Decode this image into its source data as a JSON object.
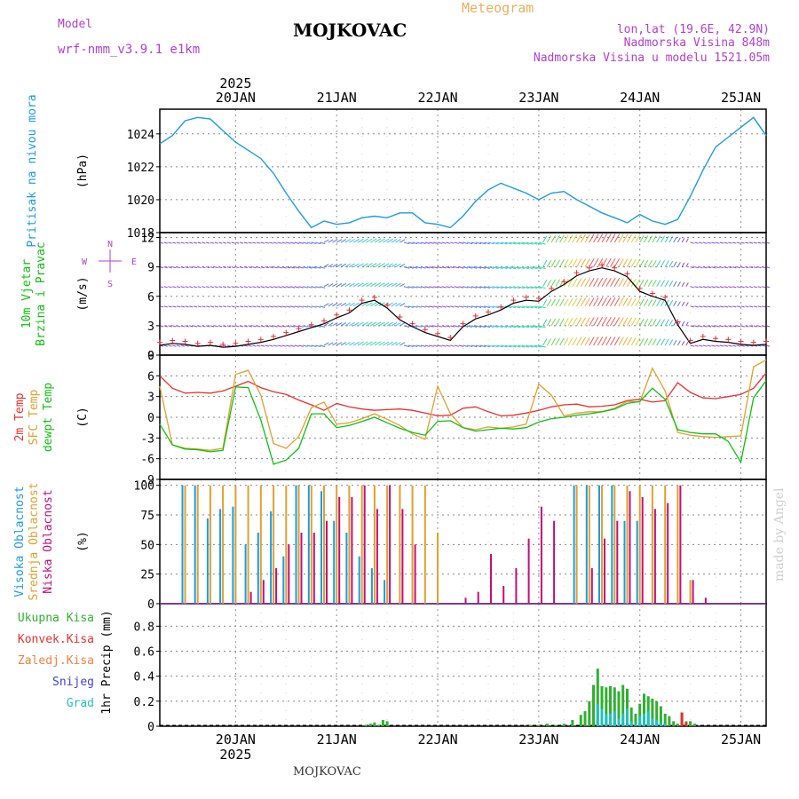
{
  "header": {
    "title": "MOJKOVAC",
    "meteogram_label": "Meteogram",
    "model_label": "Model",
    "model_value": "wrf-nmm_v3.9.1  e1km",
    "lonlat": "lon,lat (19.6E, 42.9N)",
    "altitude": "Nadmorska Visina 848m",
    "model_altitude": "Nadmorska Visina u modelu 1521.05m"
  },
  "footer": {
    "station": "MOJKOVAC",
    "credit": "made by Angel"
  },
  "colors": {
    "pressure": "#1e9be0",
    "temp2m": "#e83030",
    "sfc_temp": "#e0a030",
    "dewpt": "#10c010",
    "cloud_high": "#1e9be0",
    "cloud_mid": "#e0a030",
    "cloud_low": "#c0107a",
    "precip_total": "#30b030",
    "precip_conv": "#e83030",
    "precip_frz": "#f08040",
    "precip_snow": "#4040e0",
    "precip_graupel": "#20c0c0",
    "grid": "#888888"
  },
  "time_axis": {
    "year": "2025",
    "days": [
      "20JAN",
      "21JAN",
      "22JAN",
      "23JAN",
      "24JAN",
      "25JAN"
    ],
    "start_hours": -18,
    "end_hours": 126
  },
  "chart_data": [
    {
      "type": "line",
      "panel": "pressure",
      "ylabel_lines": [
        "Pritisak na nivou mora"
      ],
      "unit": "(hPa)",
      "ylim": [
        1018,
        1025.5
      ],
      "yticks": [
        "1018",
        "1020",
        "1022",
        "1024"
      ],
      "series": [
        {
          "x": [
            -18,
            -15,
            -12,
            -9,
            -6,
            -3,
            0,
            3,
            6,
            9,
            12,
            15,
            18,
            21,
            24,
            27,
            30,
            33,
            36,
            39,
            42,
            45,
            48,
            51,
            54,
            57,
            60,
            63,
            66,
            69,
            72,
            75,
            78,
            81,
            84,
            87,
            90,
            93,
            96,
            99,
            102,
            105,
            108,
            111,
            114,
            117,
            120,
            123,
            126
          ],
          "y": [
            1023.4,
            1023.9,
            1024.8,
            1025.0,
            1024.9,
            1024.2,
            1023.5,
            1023.0,
            1022.5,
            1021.6,
            1020.4,
            1019.3,
            1018.3,
            1018.7,
            1018.5,
            1018.6,
            1018.9,
            1019.0,
            1018.9,
            1019.2,
            1019.2,
            1018.6,
            1018.5,
            1018.3,
            1019.0,
            1019.9,
            1020.6,
            1021.0,
            1020.7,
            1020.4,
            1020.0,
            1020.4,
            1020.5,
            1020.0,
            1019.6,
            1019.2,
            1018.9,
            1018.6,
            1019.1,
            1018.7,
            1018.5,
            1018.8,
            1020.2,
            1021.8,
            1023.2,
            1023.8,
            1024.4,
            1025.0,
            1023.9
          ]
        }
      ]
    },
    {
      "type": "line",
      "panel": "wind",
      "ylabel_lines": [
        "10m Vjetar",
        "Brzina i Pravac"
      ],
      "unit": "(m/s)",
      "compass": [
        "N",
        "E",
        "S",
        "W"
      ],
      "ylim": [
        0,
        12.5
      ],
      "yticks": [
        "0",
        "3",
        "6",
        "9",
        "12"
      ],
      "series": [
        {
          "name": "speed",
          "x": [
            -18,
            -15,
            -12,
            -9,
            -6,
            -3,
            0,
            3,
            6,
            9,
            12,
            15,
            18,
            21,
            24,
            27,
            30,
            33,
            36,
            39,
            42,
            45,
            48,
            51,
            54,
            57,
            60,
            63,
            66,
            69,
            72,
            75,
            78,
            81,
            84,
            87,
            90,
            93,
            96,
            99,
            102,
            105,
            108,
            111,
            114,
            117,
            120,
            123,
            126
          ],
          "y": [
            1.0,
            1.2,
            1.1,
            0.9,
            1.0,
            0.8,
            0.9,
            1.1,
            1.3,
            1.6,
            2.0,
            2.4,
            2.8,
            3.2,
            3.8,
            4.3,
            5.3,
            5.6,
            4.8,
            3.6,
            2.9,
            2.3,
            1.9,
            1.5,
            2.9,
            3.7,
            4.1,
            4.6,
            5.3,
            5.6,
            5.5,
            6.5,
            7.2,
            8.1,
            8.6,
            8.9,
            8.6,
            8.0,
            6.5,
            6.0,
            5.6,
            3.1,
            1.2,
            1.6,
            1.4,
            1.3,
            1.1,
            1.0,
            1.1
          ]
        }
      ]
    },
    {
      "type": "line",
      "panel": "temperature",
      "ylabel_lines": [
        "2m Temp",
        "SFC Temp",
        "dewpt Temp"
      ],
      "unit": "(C)",
      "ylim": [
        -9,
        9
      ],
      "yticks": [
        "-9",
        "-6",
        "-3",
        "0",
        "3",
        "6",
        "9"
      ],
      "x": [
        -18,
        -15,
        -12,
        -9,
        -6,
        -3,
        0,
        3,
        6,
        9,
        12,
        15,
        18,
        21,
        24,
        27,
        30,
        33,
        36,
        39,
        42,
        45,
        48,
        51,
        54,
        57,
        60,
        63,
        66,
        69,
        72,
        75,
        78,
        81,
        84,
        87,
        90,
        93,
        96,
        99,
        102,
        105,
        108,
        111,
        114,
        117,
        120,
        123,
        126
      ],
      "series": [
        {
          "name": "2m Temp",
          "y": [
            6.0,
            4.2,
            3.5,
            3.6,
            3.5,
            3.8,
            4.5,
            5.2,
            4.3,
            3.7,
            3.3,
            2.5,
            1.8,
            1.0,
            2.0,
            1.5,
            1.2,
            1.0,
            1.1,
            1.2,
            1.0,
            0.6,
            0.2,
            0.3,
            1.3,
            1.5,
            0.8,
            0.2,
            0.3,
            0.6,
            1.0,
            1.5,
            1.8,
            1.9,
            1.5,
            1.6,
            1.8,
            2.4,
            2.6,
            2.2,
            2.4,
            5.0,
            3.6,
            2.8,
            2.7,
            3.0,
            3.3,
            4.2,
            6.4
          ]
        },
        {
          "name": "SFC Temp",
          "y": [
            4.5,
            -4.0,
            -4.5,
            -4.6,
            -4.8,
            -4.5,
            6.2,
            6.8,
            3.2,
            -3.8,
            -4.5,
            -2.8,
            1.4,
            2.2,
            -1.0,
            -0.8,
            -0.2,
            0.5,
            -0.3,
            -1.2,
            -2.4,
            -3.2,
            4.5,
            0.5,
            -1.5,
            -1.8,
            -1.4,
            -1.6,
            -1.4,
            -1.0,
            4.8,
            3.2,
            0.2,
            0.6,
            0.8,
            0.8,
            1.3,
            2.3,
            2.2,
            7.1,
            3.8,
            -2.2,
            -2.6,
            -2.8,
            -2.9,
            -2.8,
            -2.7,
            7.3,
            8.3
          ]
        },
        {
          "name": "dewpt Temp",
          "y": [
            -1.0,
            -4.0,
            -4.6,
            -4.7,
            -5.0,
            -4.8,
            4.4,
            4.3,
            -0.4,
            -6.8,
            -6.2,
            -4.5,
            0.5,
            0.5,
            -1.5,
            -1.2,
            -0.6,
            0.0,
            -0.8,
            -1.6,
            -2.2,
            -2.6,
            -0.6,
            -0.5,
            -1.5,
            -2.0,
            -1.8,
            -1.6,
            -1.7,
            -1.5,
            -0.7,
            -0.2,
            0.0,
            0.3,
            0.5,
            0.8,
            1.2,
            2.0,
            2.3,
            4.2,
            2.6,
            -1.8,
            -2.2,
            -2.4,
            -2.4,
            -3.5,
            -6.5,
            2.8,
            5.3
          ]
        }
      ]
    },
    {
      "type": "bar",
      "panel": "clouds",
      "ylabel_lines": [
        "Visoka Oblacnost",
        "Srednja Oblacnost",
        "Niska Oblacnost"
      ],
      "unit": "(%)",
      "ylim": [
        0,
        105
      ],
      "yticks": [
        "0",
        "25",
        "50",
        "75",
        "100"
      ],
      "x": [
        -18,
        -15,
        -12,
        -9,
        -6,
        -3,
        0,
        3,
        6,
        9,
        12,
        15,
        18,
        21,
        24,
        27,
        30,
        33,
        36,
        39,
        42,
        45,
        48,
        51,
        54,
        57,
        60,
        63,
        66,
        69,
        72,
        75,
        78,
        81,
        84,
        87,
        90,
        93,
        96,
        99,
        102,
        105,
        108,
        111,
        114,
        117,
        120,
        123,
        126
      ],
      "series": [
        {
          "name": "Visoka Oblacnost",
          "values": [
            0,
            0,
            100,
            100,
            72,
            80,
            82,
            50,
            60,
            78,
            40,
            100,
            100,
            95,
            70,
            60,
            40,
            30,
            20,
            0,
            0,
            0,
            0,
            0,
            0,
            0,
            0,
            0,
            0,
            0,
            0,
            0,
            0,
            100,
            100,
            100,
            100,
            70,
            70,
            0,
            0,
            0,
            0,
            0,
            0,
            0,
            0,
            0,
            0
          ]
        },
        {
          "name": "Srednja Oblacnost",
          "values": [
            0,
            0,
            100,
            100,
            100,
            100,
            100,
            100,
            100,
            100,
            100,
            100,
            100,
            100,
            100,
            100,
            100,
            100,
            100,
            100,
            100,
            100,
            60,
            0,
            0,
            0,
            0,
            0,
            0,
            0,
            0,
            0,
            0,
            100,
            100,
            100,
            100,
            100,
            100,
            100,
            100,
            100,
            20,
            0,
            0,
            0,
            0,
            0,
            0
          ]
        },
        {
          "name": "Niska Oblacnost",
          "values": [
            0,
            0,
            0,
            0,
            0,
            0,
            0,
            10,
            20,
            30,
            50,
            60,
            60,
            70,
            90,
            90,
            100,
            80,
            100,
            80,
            50,
            0,
            0,
            0,
            5,
            10,
            42,
            15,
            30,
            55,
            82,
            70,
            0,
            0,
            30,
            55,
            70,
            95,
            90,
            80,
            85,
            100,
            20,
            5,
            0,
            0,
            0,
            0,
            0
          ]
        }
      ]
    },
    {
      "type": "bar",
      "panel": "precipitation",
      "ylabel_lines": [
        "Ukupna Kisa",
        "Konvek.Kisa",
        "Zaledj.Kisa",
        "Snijeg",
        "Grad"
      ],
      "unit": "1hr Precip (mm)",
      "ylim": [
        0,
        0.98
      ],
      "yticks": [
        "0",
        "0.2",
        "0.4",
        "0.6",
        "0.8"
      ],
      "x": [
        31,
        32,
        33,
        34,
        35,
        36,
        70,
        72,
        74,
        76,
        78,
        80,
        82,
        83,
        84,
        85,
        86,
        87,
        88,
        89,
        90,
        91,
        92,
        93,
        94,
        95,
        96,
        97,
        98,
        99,
        100,
        101,
        102,
        103,
        104,
        105,
        106,
        107,
        108,
        109,
        110
      ],
      "series": [
        {
          "name": "Ukupna Kisa",
          "values": [
            0.01,
            0.02,
            0.03,
            0.01,
            0.05,
            0.04,
            0.01,
            0.01,
            0.02,
            0.01,
            0.02,
            0.05,
            0.09,
            0.12,
            0.2,
            0.33,
            0.46,
            0.32,
            0.31,
            0.32,
            0.31,
            0.28,
            0.33,
            0.3,
            0.15,
            0.1,
            0.18,
            0.26,
            0.24,
            0.22,
            0.2,
            0.16,
            0.1,
            0.08,
            0.04,
            0.02,
            0.11,
            0.04,
            0.04,
            0.02,
            0.0
          ]
        },
        {
          "name": "Konvek.Kisa",
          "values": [
            0,
            0,
            0,
            0,
            0,
            0,
            0,
            0,
            0,
            0,
            0,
            0,
            0,
            0,
            0,
            0,
            0,
            0,
            0,
            0,
            0,
            0,
            0,
            0,
            0,
            0,
            0,
            0,
            0,
            0,
            0,
            0,
            0,
            0,
            0,
            0,
            0.11,
            0.03,
            0,
            0,
            0
          ]
        },
        {
          "name": "Zaledj.Kisa",
          "values": [
            0,
            0,
            0,
            0,
            0,
            0,
            0,
            0,
            0,
            0,
            0,
            0,
            0,
            0,
            0,
            0,
            0,
            0,
            0,
            0,
            0,
            0,
            0,
            0,
            0,
            0,
            0,
            0,
            0,
            0,
            0,
            0,
            0,
            0,
            0,
            0,
            0,
            0,
            0,
            0,
            0
          ]
        },
        {
          "name": "Snijeg",
          "values": [
            0,
            0,
            0,
            0,
            0,
            0,
            0,
            0,
            0,
            0,
            0,
            0,
            0,
            0,
            0,
            0,
            0,
            0,
            0,
            0,
            0,
            0,
            0,
            0,
            0,
            0,
            0,
            0,
            0,
            0,
            0,
            0,
            0,
            0,
            0,
            0,
            0,
            0,
            0,
            0,
            0
          ]
        },
        {
          "name": "Grad",
          "values": [
            0,
            0,
            0,
            0,
            0,
            0,
            0,
            0,
            0,
            0,
            0,
            0,
            0,
            0,
            0,
            0,
            0.18,
            0.14,
            0.1,
            0.1,
            0.12,
            0.06,
            0.1,
            0.14,
            0.04,
            0.02,
            0.08,
            0.1,
            0.12,
            0.06,
            0.05,
            0.03,
            0.02,
            0,
            0,
            0,
            0,
            0,
            0,
            0,
            0
          ]
        }
      ]
    }
  ]
}
